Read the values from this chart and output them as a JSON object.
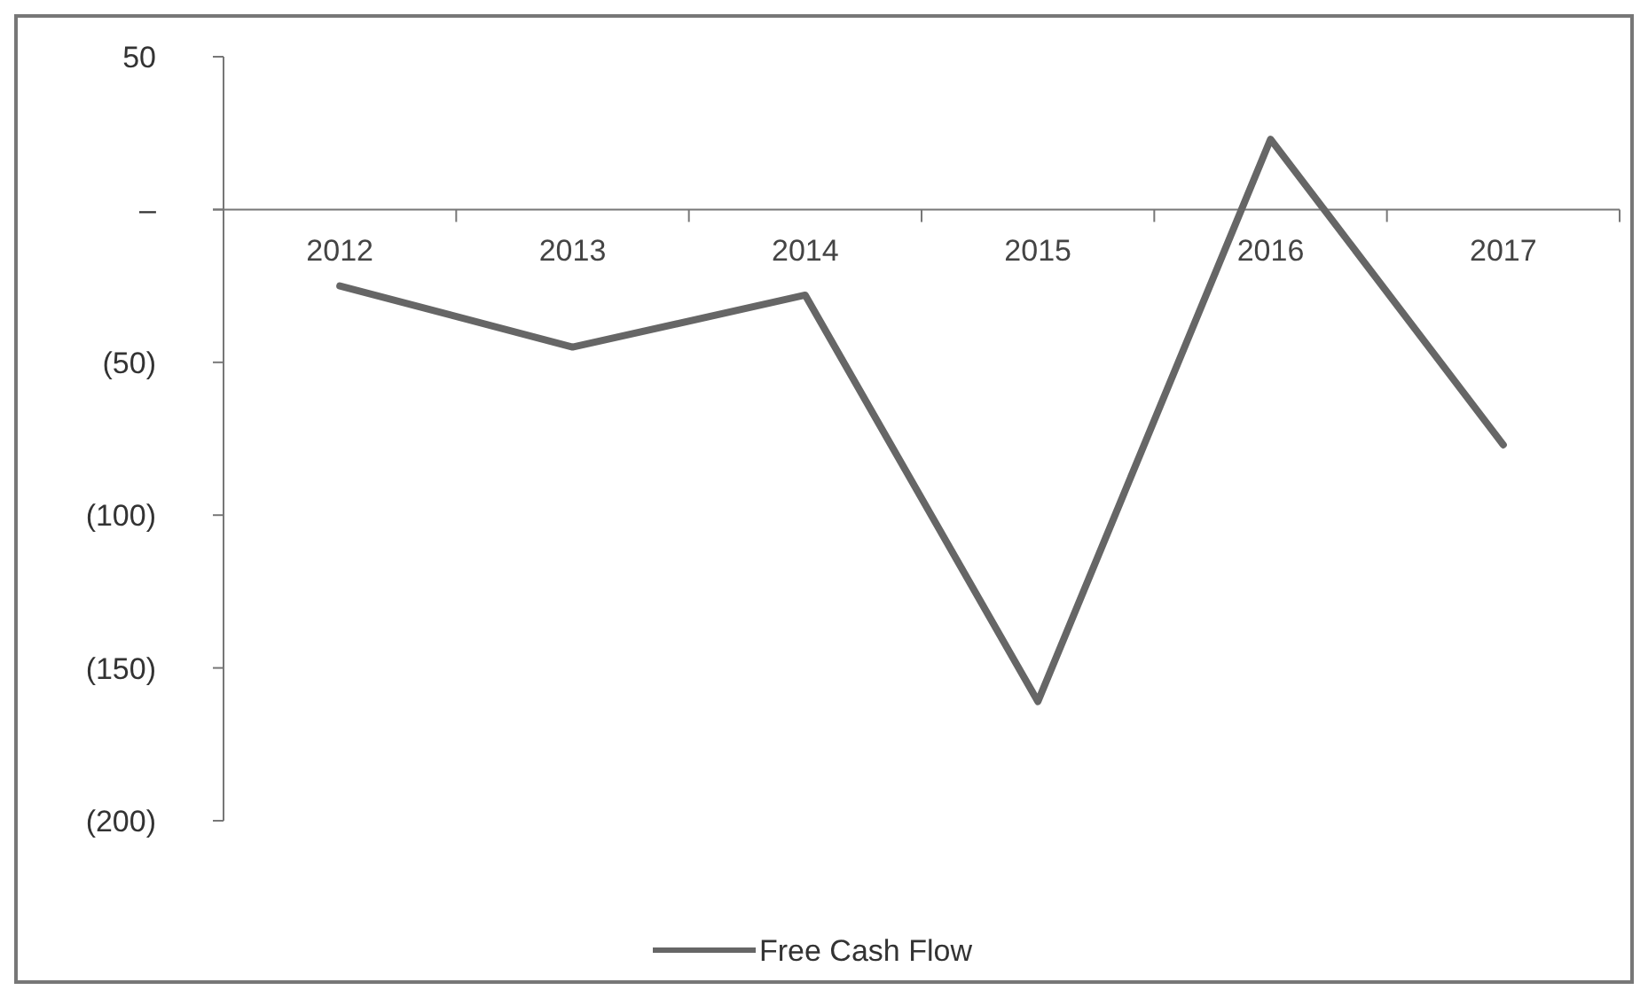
{
  "chart_data": {
    "type": "line",
    "categories": [
      "2012",
      "2013",
      "2014",
      "2015",
      "2016",
      "2017"
    ],
    "series": [
      {
        "name": "Free Cash Flow",
        "color": "#666666",
        "values": [
          -25,
          -45,
          -28,
          -161,
          23,
          -77
        ]
      }
    ],
    "ylim": [
      -200,
      50
    ],
    "yticks": [
      50,
      {
        "value": 0,
        "label": "–"
      },
      {
        "value": -50,
        "label": "(50)"
      },
      {
        "value": -100,
        "label": "(100)"
      },
      {
        "value": -150,
        "label": "(150)"
      },
      {
        "value": -200,
        "label": "(200)"
      }
    ],
    "legend": "bottom",
    "marker": "none",
    "line_style": "solid",
    "grid": false
  }
}
